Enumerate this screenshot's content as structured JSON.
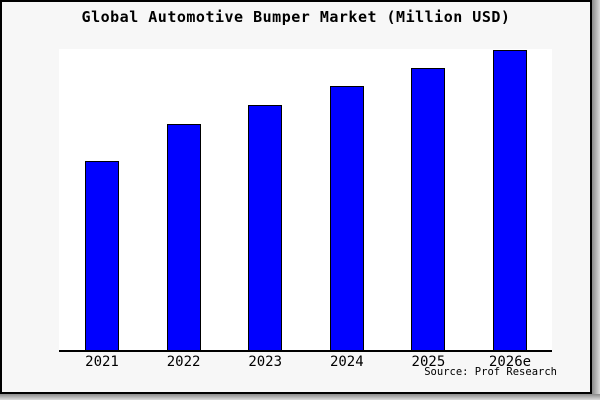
{
  "chart_data": {
    "type": "bar",
    "title": "Global Automotive Bumper Market (Million USD)",
    "categories": [
      "2021",
      "2022",
      "2023",
      "2024",
      "2025",
      "2026e"
    ],
    "values": [
      63,
      75.3,
      81.7,
      88,
      94,
      100
    ],
    "values_unit": "percent of tallest bar (no numeric y-axis shown in chart)",
    "xlabel": "",
    "ylabel": "",
    "ylim": [
      0,
      100.7
    ],
    "grid": false,
    "legend": false,
    "bar_color": "#0000ff",
    "bar_border_color": "#000000",
    "axis_color": "#000000"
  },
  "source": "Source: Prof Research",
  "colors": {
    "panel_bg": "#f7f7f7",
    "plot_bg": "#ffffff",
    "frame_border": "#000000",
    "shadow": "#8a8a8a"
  }
}
